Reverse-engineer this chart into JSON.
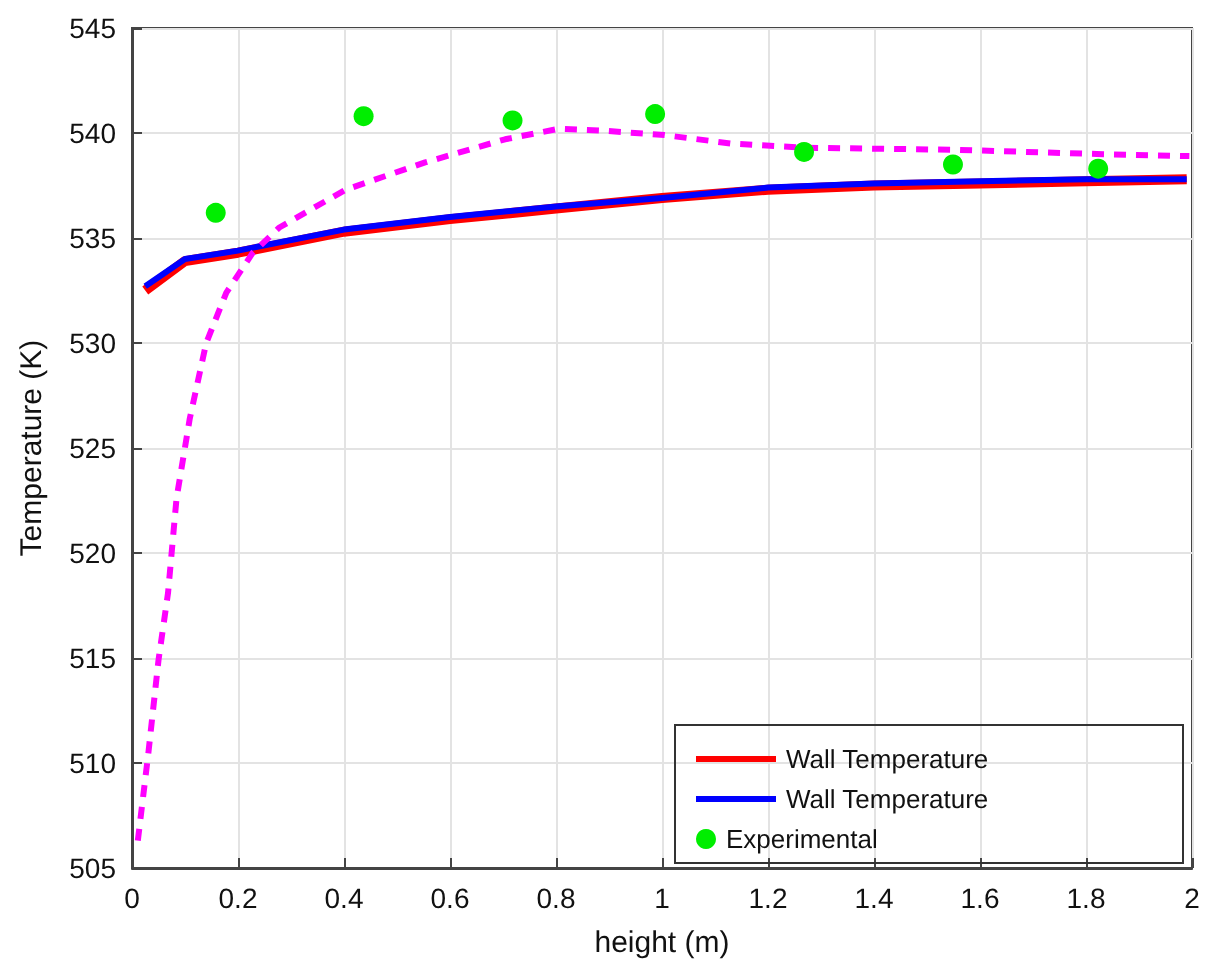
{
  "chart_data": {
    "type": "line",
    "xlabel": "height (m)",
    "ylabel": "Temperature (K)",
    "xlim": [
      0,
      2
    ],
    "xticks": [
      0,
      0.2,
      0.4,
      0.6,
      0.8,
      1,
      1.2,
      1.4,
      1.6,
      1.8,
      2
    ],
    "ylim": [
      505,
      545
    ],
    "yticks": [
      505,
      510,
      515,
      520,
      525,
      530,
      535,
      540,
      545
    ],
    "grid": true,
    "legend": "bottom right",
    "series": [
      {
        "name": "Wall Temperature",
        "color": "#ff0000",
        "x": [
          0.025,
          0.1,
          0.2,
          0.4,
          0.6,
          0.8,
          1.0,
          1.2,
          1.4,
          1.6,
          1.8,
          1.99
        ],
        "values": [
          532.5,
          533.9,
          534.3,
          535.3,
          535.9,
          536.4,
          536.9,
          537.3,
          537.5,
          537.6,
          537.7,
          537.8
        ]
      },
      {
        "name": "Wall Temperature",
        "color": "#0000ff",
        "x": [
          0.025,
          0.1,
          0.2,
          0.4,
          0.6,
          0.8,
          1.0,
          1.2,
          1.4,
          1.6,
          1.8,
          1.99
        ],
        "values": [
          532.7,
          534.0,
          534.4,
          535.4,
          536.0,
          536.5,
          536.9,
          537.4,
          537.6,
          537.7,
          537.8,
          537.8
        ]
      },
      {
        "name": "Experimental",
        "type": "scatter",
        "marker": "circle",
        "color": "#00ee00",
        "x": [
          0.158,
          0.437,
          0.718,
          0.987,
          1.268,
          1.549,
          1.823
        ],
        "values": [
          536.2,
          540.8,
          540.6,
          540.9,
          539.1,
          538.5,
          538.3
        ]
      },
      {
        "color": "#ff00ff",
        "line_style": "dashed",
        "x": [
          0.011,
          0.031,
          0.05,
          0.068,
          0.084,
          0.109,
          0.14,
          0.178,
          0.228,
          0.278,
          0.403,
          0.553,
          0.704,
          0.805,
          0.896,
          1.005,
          1.13,
          1.27,
          1.556,
          1.82,
          1.995
        ],
        "values": [
          506.3,
          510.5,
          514.9,
          518.1,
          522.6,
          526.4,
          530.0,
          532.4,
          534.3,
          535.5,
          537.3,
          538.6,
          539.7,
          540.2,
          540.1,
          539.9,
          539.5,
          539.3,
          539.2,
          539.0,
          538.9
        ]
      }
    ]
  }
}
